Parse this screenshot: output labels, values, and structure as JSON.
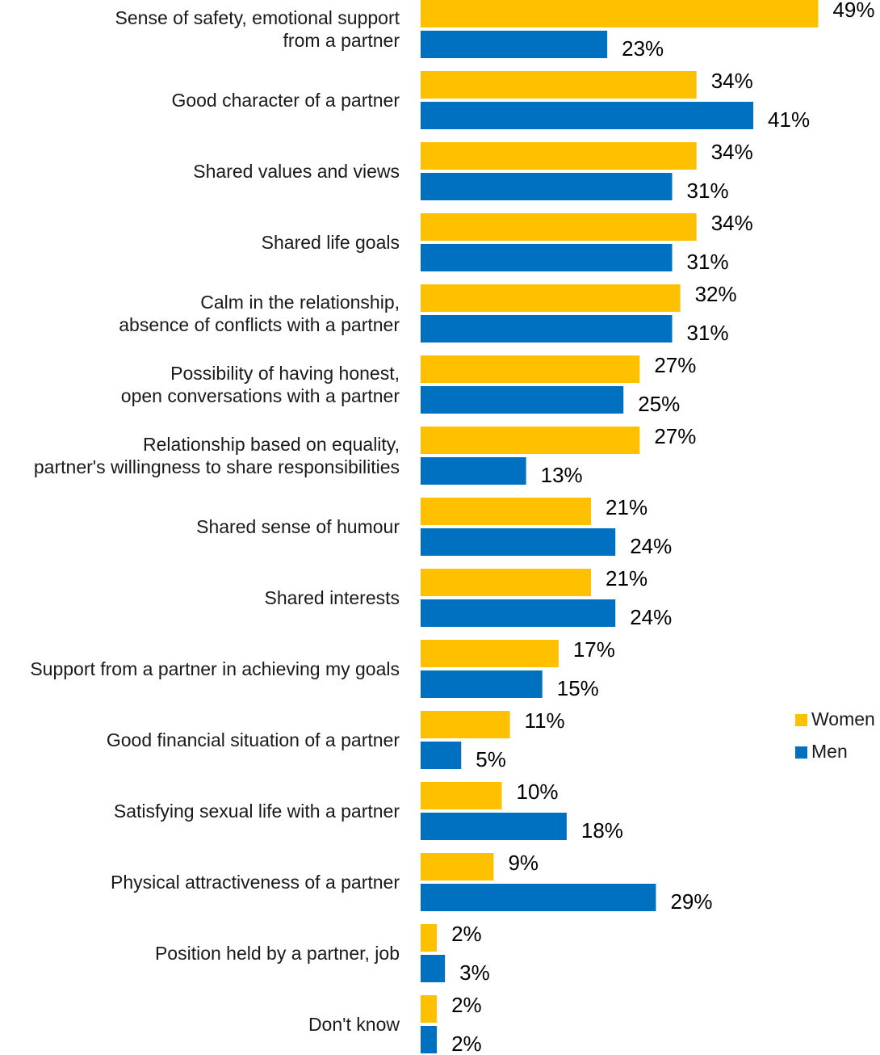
{
  "chart_data": {
    "type": "bar",
    "orientation": "horizontal",
    "title": "",
    "xlabel": "",
    "ylabel": "",
    "xlim": [
      0,
      50
    ],
    "grid": false,
    "legend_position": "right",
    "categories": [
      [
        "Sense of safety, emotional support",
        "from a partner"
      ],
      [
        "Good character of a partner"
      ],
      [
        "Shared values and views"
      ],
      [
        "Shared life goals"
      ],
      [
        "Calm in the relationship,",
        "absence of conflicts with a partner"
      ],
      [
        "Possibility of having honest,",
        "open conversations with a partner"
      ],
      [
        "Relationship based on equality,",
        "partner's willingness to share responsibilities"
      ],
      [
        "Shared sense of humour"
      ],
      [
        "Shared interests"
      ],
      [
        "Support from a partner in achieving my goals"
      ],
      [
        "Good financial situation of a partner"
      ],
      [
        "Satisfying sexual life with a partner"
      ],
      [
        "Physical attractiveness of a partner"
      ],
      [
        "Position held by a partner, job"
      ],
      [
        "Don't know"
      ]
    ],
    "series": [
      {
        "name": "Women",
        "color": "#FFC000",
        "values": [
          49,
          34,
          34,
          34,
          32,
          27,
          27,
          21,
          21,
          17,
          11,
          10,
          9,
          2,
          2
        ],
        "labels": [
          "49%",
          "34%",
          "34%",
          "34%",
          "32%",
          "27%",
          "27%",
          "21%",
          "21%",
          "17%",
          "11%",
          "10%",
          "9%",
          "2%",
          "2%"
        ]
      },
      {
        "name": "Men",
        "color": "#0070C0",
        "values": [
          23,
          41,
          31,
          31,
          31,
          25,
          13,
          24,
          24,
          15,
          5,
          18,
          29,
          3,
          2
        ],
        "labels": [
          "23%",
          "41%",
          "31%",
          "31%",
          "31%",
          "25%",
          "13%",
          "24%",
          "24%",
          "15%",
          "5%",
          "18%",
          "29%",
          "3%",
          "2%"
        ]
      }
    ]
  }
}
